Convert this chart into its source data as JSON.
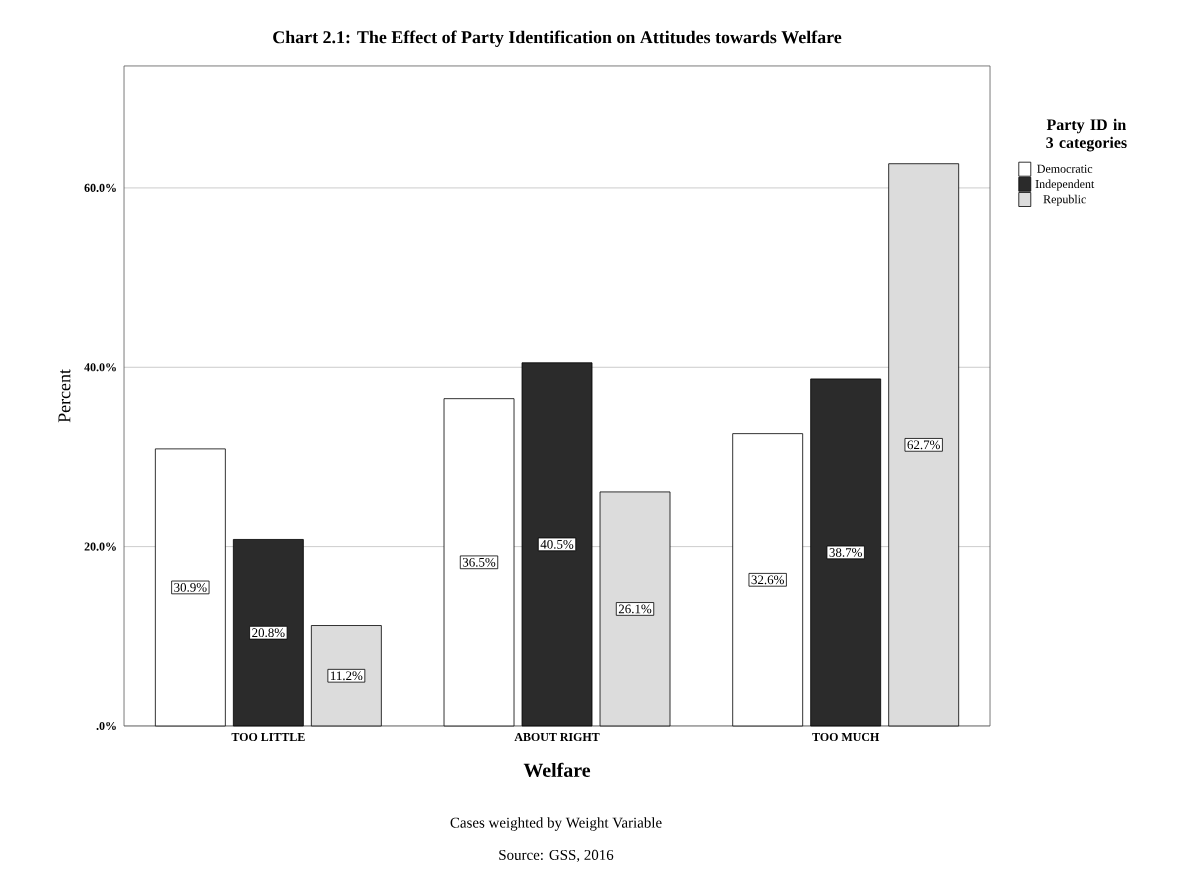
{
  "chart_data": {
    "type": "bar",
    "title": "Chart 2.1: The Effect of Party Identification on Attitudes towards Welfare",
    "xlabel": "Welfare",
    "ylabel": "Percent",
    "legend_title": "Party ID in 3 categories",
    "categories": [
      "TOO LITTLE",
      "ABOUT RIGHT",
      "TOO MUCH"
    ],
    "series": [
      {
        "name": "Democratic",
        "color": "#ffffff",
        "values": [
          30.9,
          36.5,
          32.6
        ],
        "value_labels": [
          "30.9%",
          "36.5%",
          "32.6%"
        ]
      },
      {
        "name": "Independent",
        "color": "#2b2b2b",
        "values": [
          20.8,
          40.5,
          38.7
        ],
        "value_labels": [
          "20.8%",
          "40.5%",
          "38.7%"
        ]
      },
      {
        "name": "Republic",
        "color": "#dcdcdc",
        "values": [
          11.2,
          26.1,
          62.7
        ],
        "value_labels": [
          "11.2%",
          "26.1%",
          "62.7%"
        ]
      }
    ],
    "ylim": [
      0,
      73.6
    ],
    "yticks": [
      {
        "value": 0,
        "label": ".0%"
      },
      {
        "value": 20,
        "label": "20.0%"
      },
      {
        "value": 40,
        "label": "40.0%"
      },
      {
        "value": 60,
        "label": "60.0%"
      }
    ],
    "grid": "y",
    "legend": "right",
    "annotations": [
      "Cases weighted by Weight Variable",
      "Source: GSS, 2016"
    ]
  }
}
